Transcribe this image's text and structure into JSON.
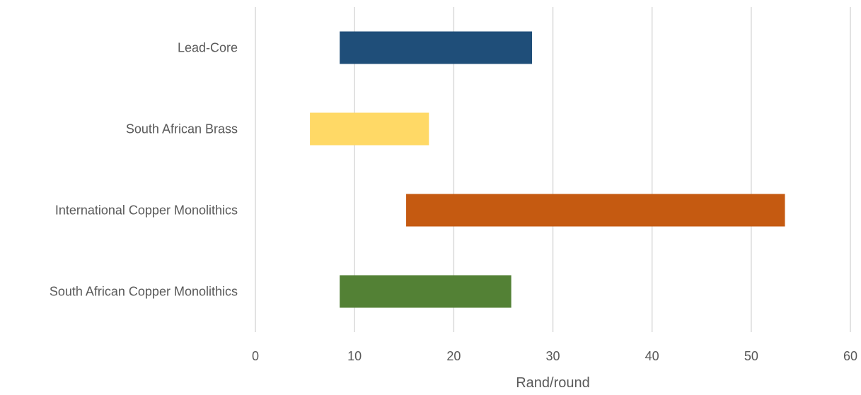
{
  "chart_data": {
    "type": "bar",
    "orientation": "horizontal",
    "subtype": "floating-range",
    "categories": [
      "Lead-Core ",
      "South African Brass",
      "International Copper Monolithics",
      "South African Copper Monolithics"
    ],
    "ranges": [
      {
        "start": 8.5,
        "end": 27.9
      },
      {
        "start": 5.5,
        "end": 17.5
      },
      {
        "start": 15.2,
        "end": 53.4
      },
      {
        "start": 8.5,
        "end": 25.8
      }
    ],
    "colors": [
      "#1f4e79",
      "#ffd966",
      "#c55a11",
      "#538135"
    ],
    "xlabel": "Rand/round",
    "ylabel": "",
    "xlim": [
      0,
      60
    ],
    "xticks": [
      0,
      10,
      20,
      30,
      40,
      50,
      60
    ],
    "grid": "vertical",
    "gridColor": "#d9d9d9",
    "legend": "none"
  }
}
